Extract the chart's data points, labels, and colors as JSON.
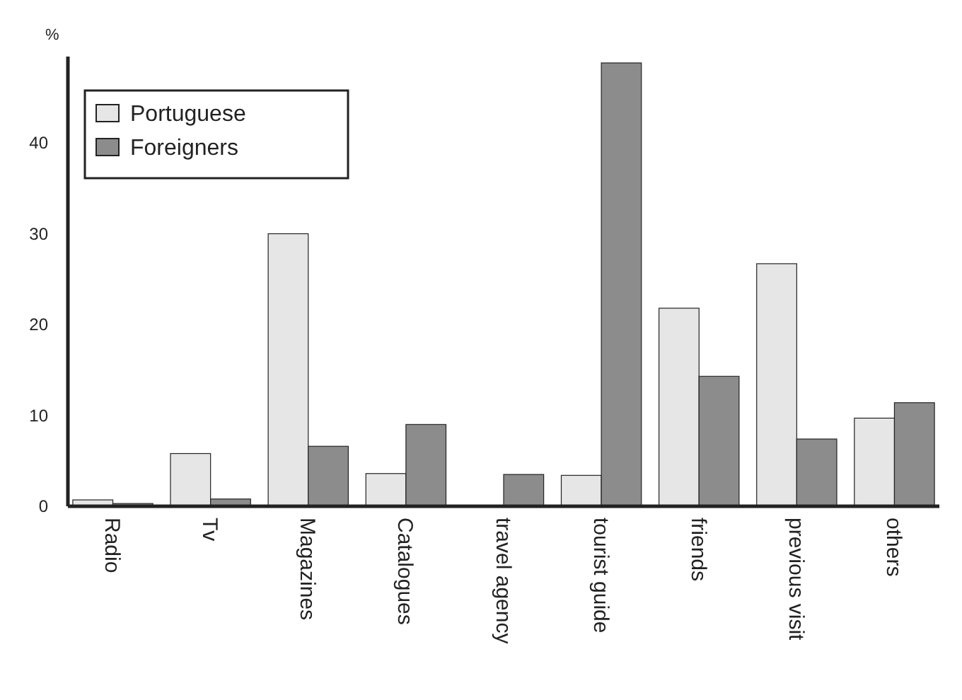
{
  "chart_data": {
    "type": "bar",
    "ylabel": "%",
    "categories": [
      "Radio",
      "Tv",
      "Magazines",
      "Catalogues",
      "travel agency",
      "tourist guide",
      "friends",
      "previous visit",
      "others"
    ],
    "series": [
      {
        "name": "Portuguese",
        "color": "#e6e6e6",
        "values": [
          0.7,
          5.8,
          30,
          3.6,
          0,
          3.4,
          21.8,
          26.7,
          9.7
        ]
      },
      {
        "name": "Foreigners",
        "color": "#8c8c8c",
        "values": [
          0.3,
          0.8,
          6.6,
          9,
          3.5,
          48.8,
          14.3,
          7.4,
          11.4
        ]
      }
    ],
    "ylim": [
      0,
      49.5
    ],
    "yticks": [
      0,
      10,
      20,
      30,
      40
    ],
    "grid": false,
    "legend": "top left"
  }
}
